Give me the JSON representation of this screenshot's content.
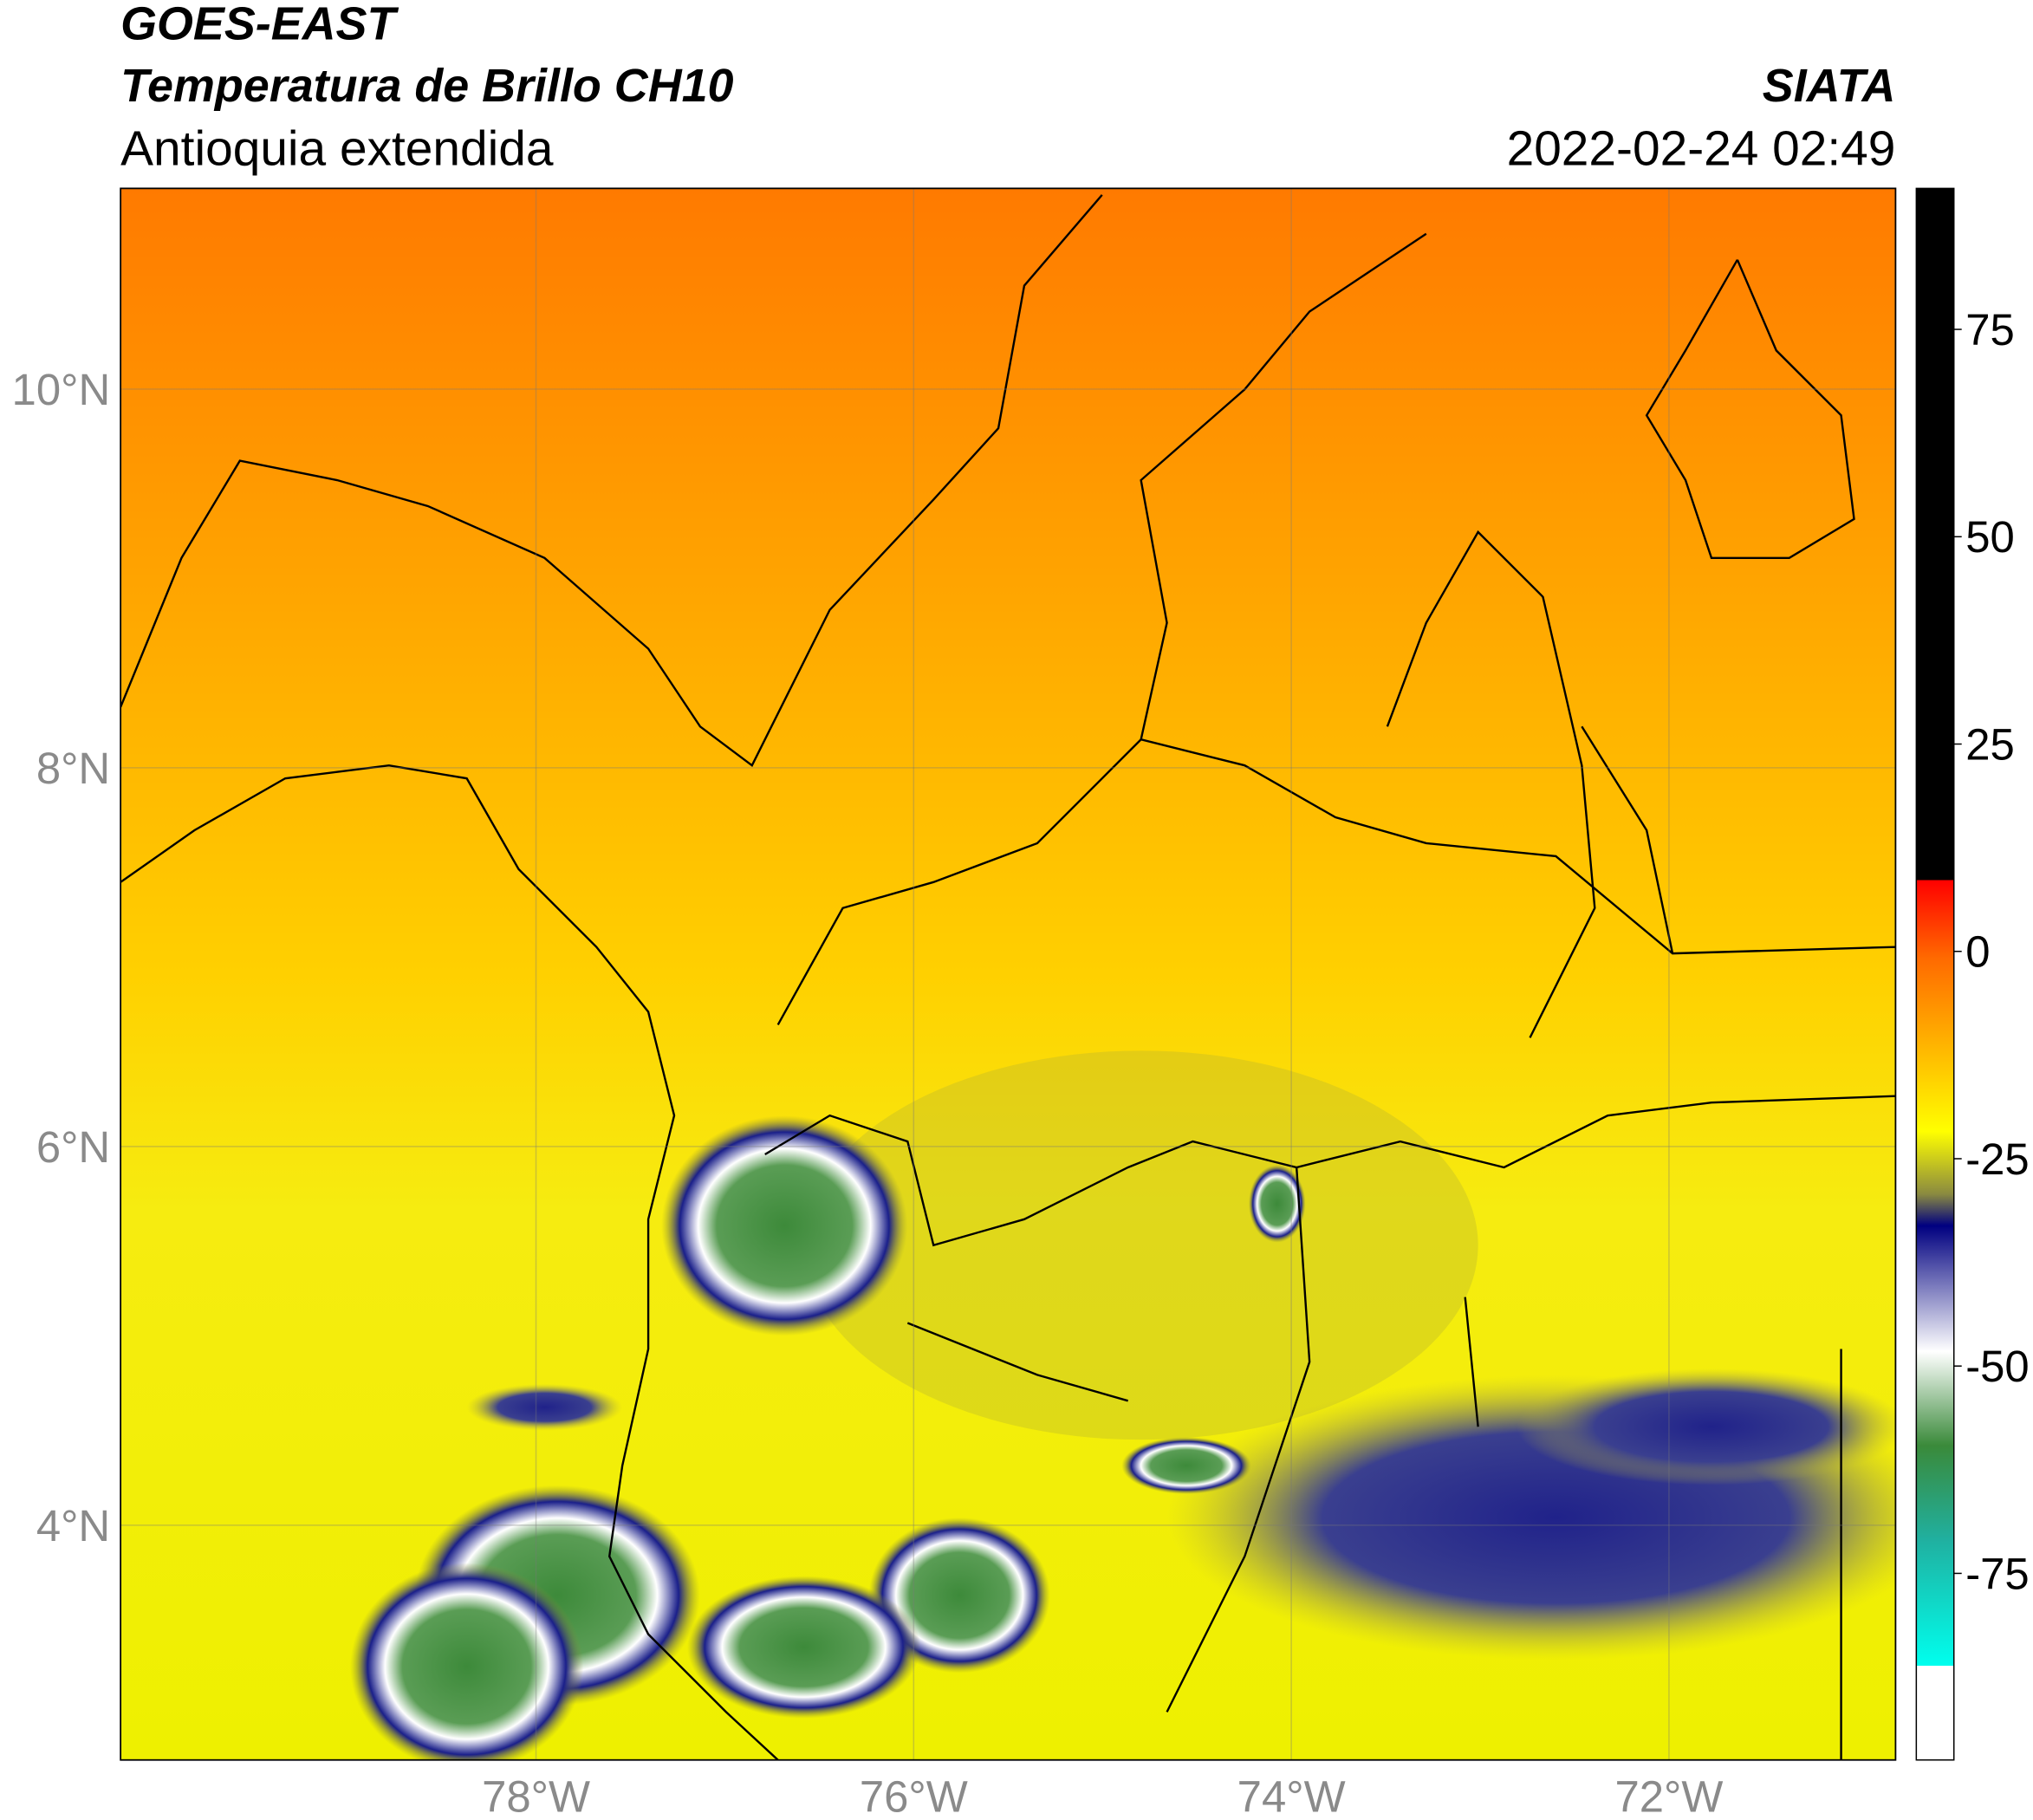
{
  "header": {
    "title": "GOES-EAST",
    "subtitle": "Temperatura de Brillo CH10",
    "region": "Antioquia extendida",
    "organization": "SIATA",
    "datetime": "2022-02-24 02:49"
  },
  "map": {
    "lonlim": [
      -80.2,
      -70.8
    ],
    "latlim": [
      2.76,
      11.06
    ],
    "lon_ticks": [
      {
        "value": -78,
        "label": "78°W"
      },
      {
        "value": -76,
        "label": "76°W"
      },
      {
        "value": -74,
        "label": "74°W"
      },
      {
        "value": -72,
        "label": "72°W"
      }
    ],
    "lat_ticks": [
      {
        "value": 4,
        "label": "4°N"
      },
      {
        "value": 6,
        "label": "6°N"
      },
      {
        "value": 8,
        "label": "8°N"
      },
      {
        "value": 10,
        "label": "10°N"
      }
    ],
    "grid": true
  },
  "colorbar": {
    "lim": [
      -97.5,
      92
    ],
    "ticks": [
      75,
      50,
      25,
      0,
      -25,
      -50,
      -75
    ]
  }
}
